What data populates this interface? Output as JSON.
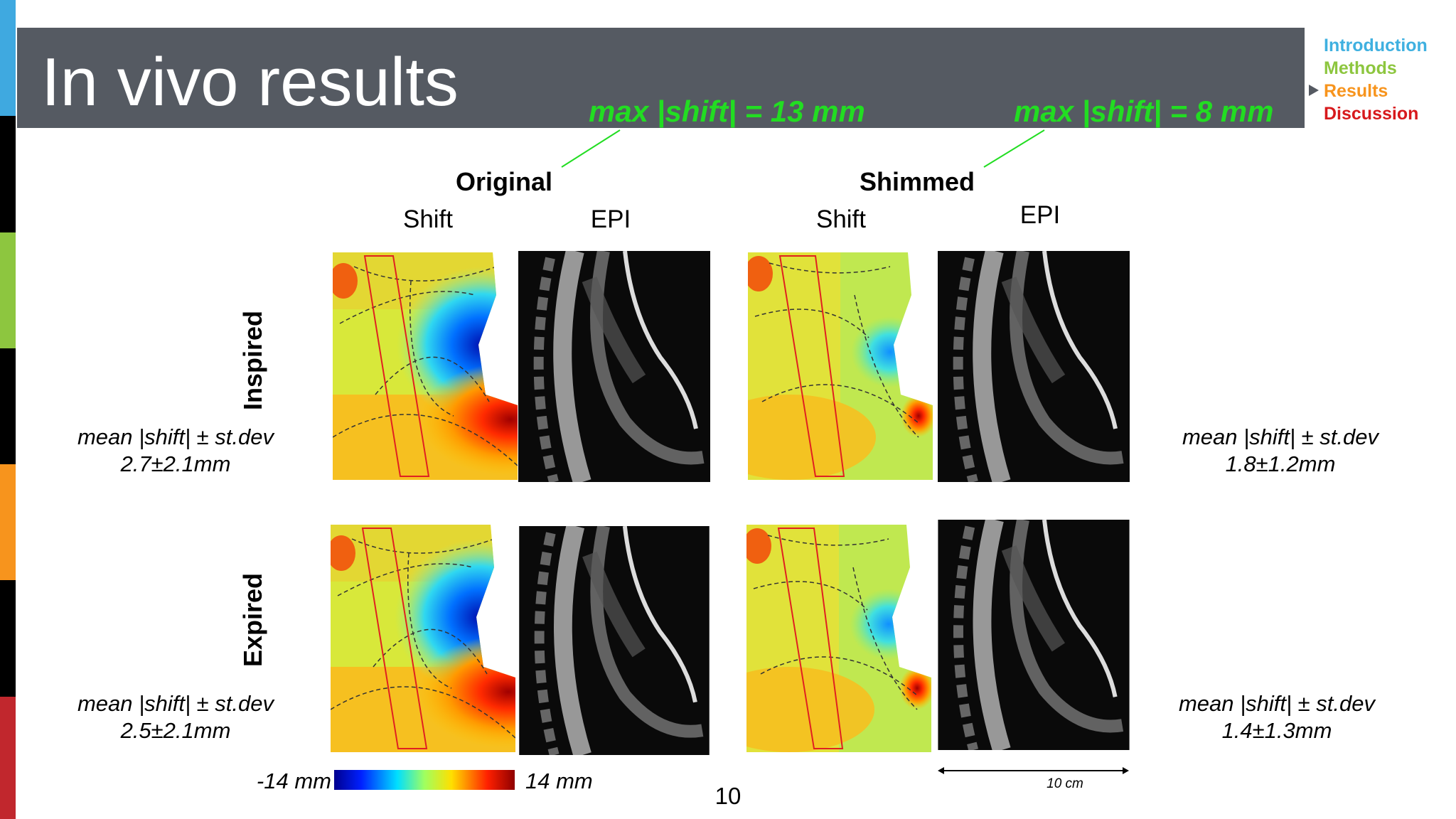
{
  "header": {
    "title": "In vivo results"
  },
  "nav": [
    "Introduction",
    "Methods",
    "Results",
    "Discussion"
  ],
  "annotations": [
    "max |shift| = 13 mm",
    "max |shift| = 8 mm"
  ],
  "groups": [
    "Original",
    "Shimmed"
  ],
  "columns": [
    "Shift",
    "EPI",
    "Shift",
    "EPI"
  ],
  "rows": [
    "Inspired",
    "Expired"
  ],
  "stats": {
    "label": "mean |shift| ± st.dev",
    "inspired_original": "2.7±2.1mm",
    "inspired_shimmed": "1.8±1.2mm",
    "expired_original": "2.5±2.1mm",
    "expired_shimmed": "1.4±1.3mm"
  },
  "colorbar": {
    "min_label": "-14 mm",
    "max_label": "14 mm"
  },
  "scale_bar": "10 cm",
  "page_number": "10"
}
